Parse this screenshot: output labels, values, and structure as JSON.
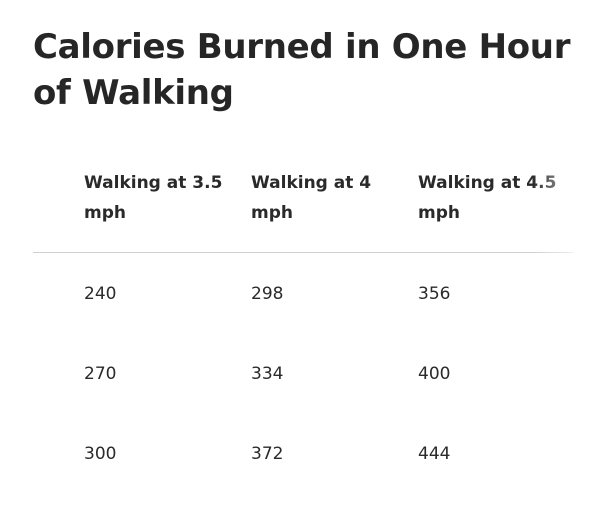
{
  "heading": "Calories Burned in One Hour of Walking",
  "table": {
    "headers": [
      "Walking at 3.5 mph",
      "Walking at 4 mph",
      "Walking at 4.5 mph"
    ],
    "rows": [
      [
        "240",
        "298",
        "356"
      ],
      [
        "270",
        "334",
        "400"
      ],
      [
        "300",
        "372",
        "444"
      ]
    ]
  }
}
